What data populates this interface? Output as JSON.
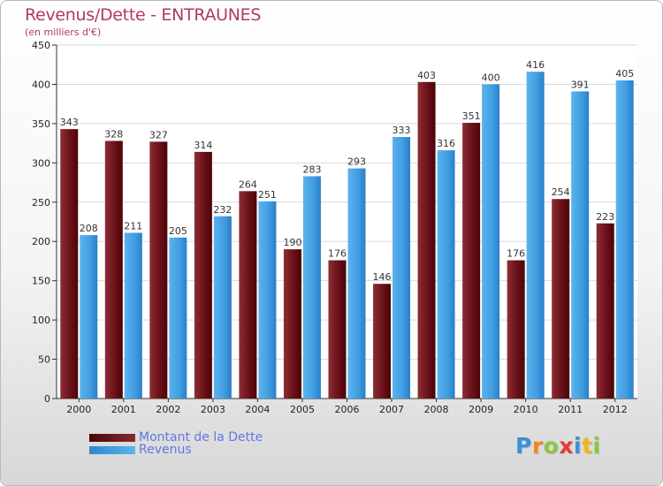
{
  "header": {
    "title": "Revenus/Dette - ENTRAUNES",
    "subtitle": "(en milliers d'€)"
  },
  "colors": {
    "dette": "#7a1a22",
    "revenus": "#3f9de1",
    "title": "#b23a5a",
    "legend_text": "#5f78e3"
  },
  "chart_data": {
    "type": "bar",
    "title": "Revenus/Dette - ENTRAUNES",
    "subtitle": "(en milliers d'€)",
    "categories": [
      "2000",
      "2001",
      "2002",
      "2003",
      "2004",
      "2005",
      "2006",
      "2007",
      "2008",
      "2009",
      "2010",
      "2011",
      "2012"
    ],
    "series": [
      {
        "name": "Montant de la Dette",
        "values": [
          343,
          328,
          327,
          314,
          264,
          190,
          176,
          146,
          403,
          351,
          176,
          254,
          223
        ]
      },
      {
        "name": "Revenus",
        "values": [
          208,
          211,
          205,
          232,
          251,
          283,
          293,
          333,
          316,
          400,
          416,
          391,
          405
        ]
      }
    ],
    "yticks": [
      0,
      50,
      100,
      150,
      200,
      250,
      300,
      350,
      400,
      450
    ],
    "ylim": [
      0,
      450
    ],
    "grid": true,
    "legend": "bottom-left"
  },
  "legend": {
    "items": [
      {
        "label": "Montant de la Dette"
      },
      {
        "label": "Revenus"
      }
    ]
  },
  "brand": {
    "letters": [
      "P",
      "r",
      "o",
      "x",
      "i",
      "t",
      "i"
    ],
    "letter_colors": [
      "#3b8fd6",
      "#f08a1c",
      "#8cc63f",
      "#e63b2e",
      "#3b8fd6",
      "#f3b51b",
      "#8cc63f"
    ]
  }
}
